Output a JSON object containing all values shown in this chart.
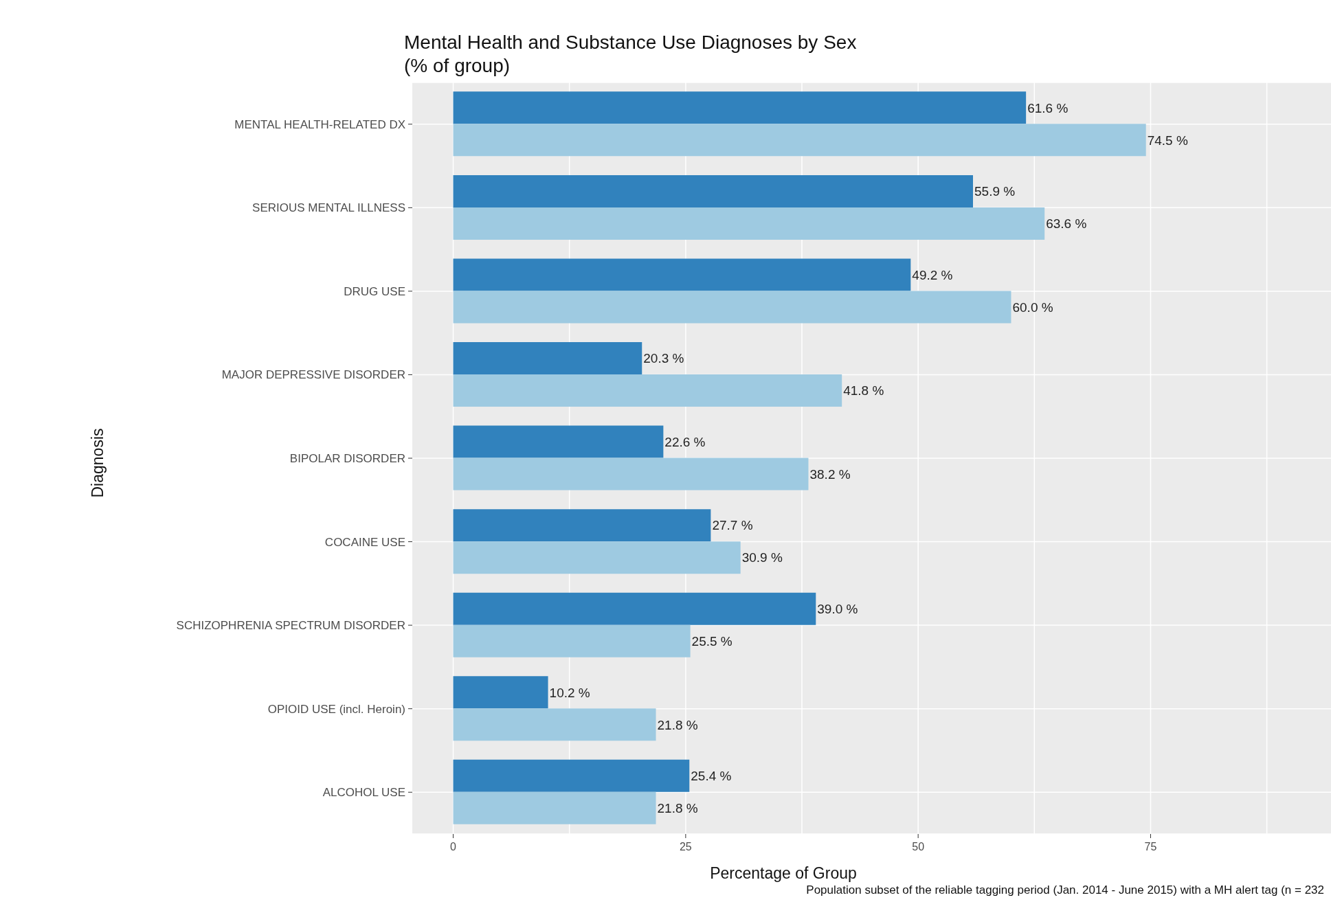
{
  "chart_data": {
    "type": "bar",
    "orientation": "horizontal",
    "title": "Mental Health and Substance Use Diagnoses by Sex\n(% of group)",
    "xlabel": "Percentage of Group",
    "ylabel": "Diagnosis",
    "annotations": [
      "Population subset of the reliable tagging period (Jan. 2014 - June 2015) with a MH alert tag (n = 232"
    ],
    "categories": [
      "MENTAL HEALTH-RELATED DX",
      "SERIOUS MENTAL ILLNESS",
      "DRUG USE",
      "MAJOR DEPRESSIVE DISORDER",
      "BIPOLAR DISORDER",
      "COCAINE USE",
      "SCHIZOPHRENIA SPECTRUM DISORDER",
      "OPIOID USE (incl. Heroin)",
      "ALCOHOL USE"
    ],
    "series": [
      {
        "color": "#3182bd",
        "values": [
          61.6,
          55.9,
          49.2,
          20.3,
          22.6,
          27.7,
          39.0,
          10.2,
          25.4
        ],
        "value_labels": [
          "61.6 %",
          "55.9 %",
          "49.2 %",
          "20.3 %",
          "22.6 %",
          "27.7 %",
          "39.0 %",
          "10.2 %",
          "25.4 %"
        ]
      },
      {
        "color": "#9ecae1",
        "values": [
          74.5,
          63.6,
          60.0,
          41.8,
          38.2,
          30.9,
          25.5,
          21.8,
          21.8
        ],
        "value_labels": [
          "74.5 %",
          "63.6 %",
          "60.0 %",
          "41.8 %",
          "38.2 %",
          "30.9 %",
          "25.5 %",
          "21.8 %",
          "21.8 %"
        ]
      }
    ],
    "xlim": [
      -4.4,
      94.4
    ],
    "xticks": [
      0,
      {
        "value": 12.5,
        "label": null
      },
      25,
      {
        "value": 37.5,
        "label": null
      },
      50,
      {
        "value": 62.5,
        "label": null
      },
      75,
      {
        "value": 87.5,
        "label": null
      }
    ],
    "grid": true
  }
}
